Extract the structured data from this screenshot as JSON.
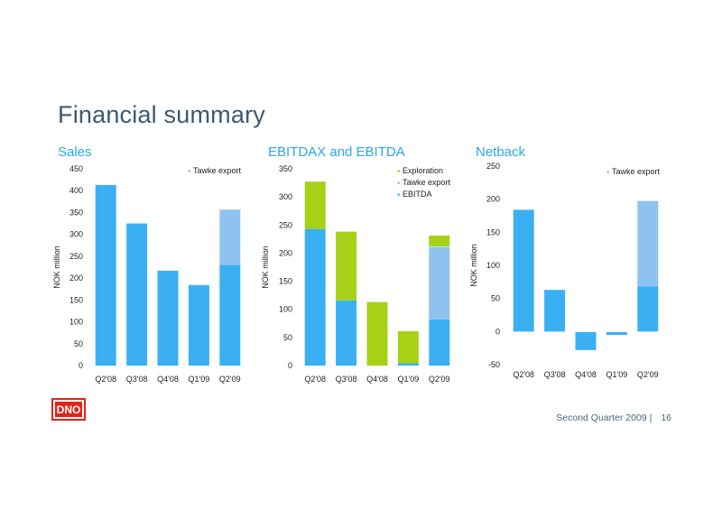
{
  "page": {
    "title": "Financial summary",
    "footer_text": "Second Quarter 2009 |",
    "page_number": "16",
    "logo_text": "DNO"
  },
  "colors": {
    "ebitda": "#3ab0f3",
    "tawke_export": "#8fc3ef",
    "exploration": "#a6d117",
    "title": "#3b5a70",
    "chart_title": "#29a9e6",
    "logo_red": "#e2231a"
  },
  "chart_data": [
    {
      "type": "bar",
      "title": "Sales",
      "ylabel": "NOK million",
      "categories": [
        "Q2'08",
        "Q3'08",
        "Q4'08",
        "Q1'09",
        "Q2'09"
      ],
      "ylim": [
        0,
        450
      ],
      "yticks": [
        0,
        50,
        100,
        150,
        200,
        250,
        300,
        350,
        400,
        450
      ],
      "stacked": true,
      "legend_position": "top-right",
      "series": [
        {
          "name": "",
          "color_key": "ebitda",
          "values": [
            413,
            325,
            217,
            184,
            230
          ]
        },
        {
          "name": "Tawke export",
          "color_key": "tawke_export",
          "values": [
            0,
            0,
            0,
            0,
            128
          ]
        }
      ]
    },
    {
      "type": "bar",
      "title": "EBITDAX and EBITDA",
      "ylabel": "NOK million",
      "categories": [
        "Q2'08",
        "Q3'08",
        "Q4'08",
        "Q1'09",
        "Q2'09"
      ],
      "ylim": [
        0,
        350
      ],
      "yticks": [
        0,
        50,
        100,
        150,
        200,
        250,
        300,
        350
      ],
      "stacked": true,
      "legend_position": "top-right",
      "series": [
        {
          "name": "EBITDA",
          "color_key": "ebitda",
          "values": [
            243,
            116,
            0,
            4,
            82
          ]
        },
        {
          "name": "Tawke export",
          "color_key": "tawke_export",
          "values": [
            0,
            0,
            0,
            0,
            130
          ]
        },
        {
          "name": "Exploration",
          "color_key": "exploration",
          "values": [
            85,
            123,
            113,
            58,
            20
          ]
        }
      ]
    },
    {
      "type": "bar",
      "title": "Netback",
      "ylabel": "NOK million",
      "categories": [
        "Q2'08",
        "Q3'08",
        "Q4'08",
        "Q1'09",
        "Q2'09"
      ],
      "ylim": [
        -50,
        250
      ],
      "yticks": [
        -50,
        0,
        50,
        100,
        150,
        200,
        250
      ],
      "stacked": true,
      "legend_position": "top-right",
      "series": [
        {
          "name": "",
          "color_key": "ebitda",
          "values": [
            184,
            63,
            -28,
            -5,
            68
          ]
        },
        {
          "name": "Tawke export",
          "color_key": "tawke_export",
          "values": [
            0,
            0,
            0,
            0,
            130
          ]
        }
      ]
    }
  ]
}
